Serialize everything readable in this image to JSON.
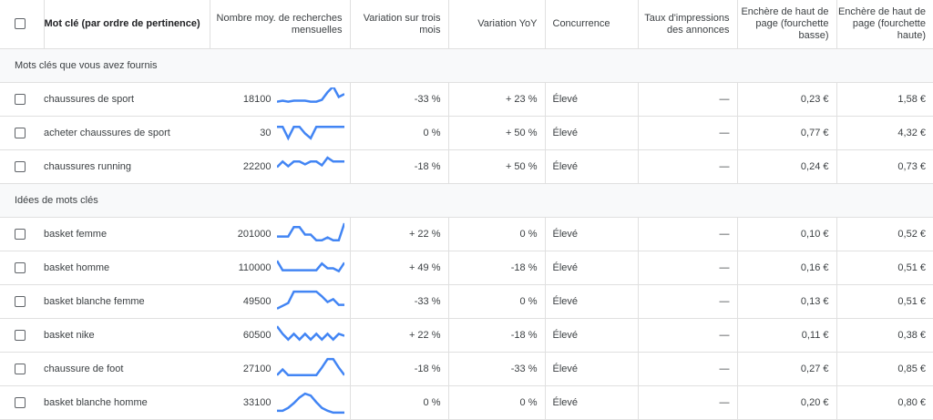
{
  "headers": {
    "keyword": "Mot clé (par ordre de pertinence)",
    "volume": "Nombre moy. de recherches mensuelles",
    "three_month": "Variation sur trois mois",
    "yoy": "Variation YoY",
    "competition": "Concurrence",
    "impression_share": "Taux d'impressions des annonces",
    "bid_low": "Enchère de haut de page (fourchette basse)",
    "bid_high": "Enchère de haut de page (fourchette haute)"
  },
  "group1": {
    "label": "Mots clés que vous avez fournis",
    "rows": [
      {
        "keyword": "chaussures de sport",
        "volume": "18100",
        "trend": [
          20,
          22,
          20,
          22,
          22,
          22,
          20,
          20,
          24,
          40,
          52,
          30,
          36
        ],
        "three_month": "-33 %",
        "yoy": "+ 23 %",
        "competition": "Élevé",
        "impression_share": "—",
        "bid_low": "0,23 €",
        "bid_high": "1,58 €"
      },
      {
        "keyword": "acheter chaussures de sport",
        "volume": "30",
        "trend": [
          38,
          38,
          14,
          38,
          38,
          24,
          14,
          38,
          38,
          38,
          38,
          38,
          38
        ],
        "three_month": "0 %",
        "yoy": "+ 50 %",
        "competition": "Élevé",
        "impression_share": "—",
        "bid_low": "0,77 €",
        "bid_high": "4,32 €"
      },
      {
        "keyword": "chaussures running",
        "volume": "22200",
        "trend": [
          24,
          36,
          26,
          36,
          36,
          30,
          36,
          36,
          28,
          44,
          36,
          36,
          36
        ],
        "three_month": "-18 %",
        "yoy": "+ 50 %",
        "competition": "Élevé",
        "impression_share": "—",
        "bid_low": "0,24 €",
        "bid_high": "0,73 €"
      }
    ]
  },
  "group2": {
    "label": "Idées de mots clés",
    "rows": [
      {
        "keyword": "basket femme",
        "volume": "201000",
        "trend": [
          20,
          20,
          20,
          40,
          40,
          24,
          24,
          12,
          12,
          18,
          12,
          12,
          48
        ],
        "three_month": "+ 22 %",
        "yoy": "0 %",
        "competition": "Élevé",
        "impression_share": "—",
        "bid_low": "0,10 €",
        "bid_high": "0,52 €"
      },
      {
        "keyword": "basket homme",
        "volume": "110000",
        "trend": [
          40,
          20,
          20,
          20,
          20,
          20,
          20,
          20,
          34,
          24,
          24,
          18,
          36
        ],
        "three_month": "+ 49 %",
        "yoy": "-18 %",
        "competition": "Élevé",
        "impression_share": "—",
        "bid_low": "0,16 €",
        "bid_high": "0,51 €"
      },
      {
        "keyword": "basket blanche femme",
        "volume": "49500",
        "trend": [
          10,
          16,
          22,
          46,
          46,
          46,
          46,
          46,
          36,
          24,
          30,
          18,
          18
        ],
        "three_month": "-33 %",
        "yoy": "0 %",
        "competition": "Élevé",
        "impression_share": "—",
        "bid_low": "0,13 €",
        "bid_high": "0,51 €"
      },
      {
        "keyword": "basket nike",
        "volume": "60500",
        "trend": [
          44,
          28,
          16,
          28,
          16,
          28,
          16,
          28,
          16,
          28,
          16,
          28,
          24
        ],
        "three_month": "+ 22 %",
        "yoy": "-18 %",
        "competition": "Élevé",
        "impression_share": "—",
        "bid_low": "0,11 €",
        "bid_high": "0,38 €"
      },
      {
        "keyword": "chaussure de foot",
        "volume": "27100",
        "trend": [
          12,
          24,
          12,
          12,
          12,
          12,
          12,
          12,
          28,
          46,
          46,
          28,
          12
        ],
        "three_month": "-18 %",
        "yoy": "-33 %",
        "competition": "Élevé",
        "impression_share": "—",
        "bid_low": "0,27 €",
        "bid_high": "0,85 €"
      },
      {
        "keyword": "basket blanche homme",
        "volume": "33100",
        "trend": [
          8,
          8,
          14,
          24,
          36,
          44,
          40,
          26,
          14,
          8,
          4,
          4,
          4
        ],
        "three_month": "0 %",
        "yoy": "0 %",
        "competition": "Élevé",
        "impression_share": "—",
        "bid_low": "0,20 €",
        "bid_high": "0,80 €"
      }
    ]
  },
  "colors": {
    "sparkline": "#4285f4",
    "border": "#e0e0e0",
    "group_bg": "#f8f9fa"
  }
}
